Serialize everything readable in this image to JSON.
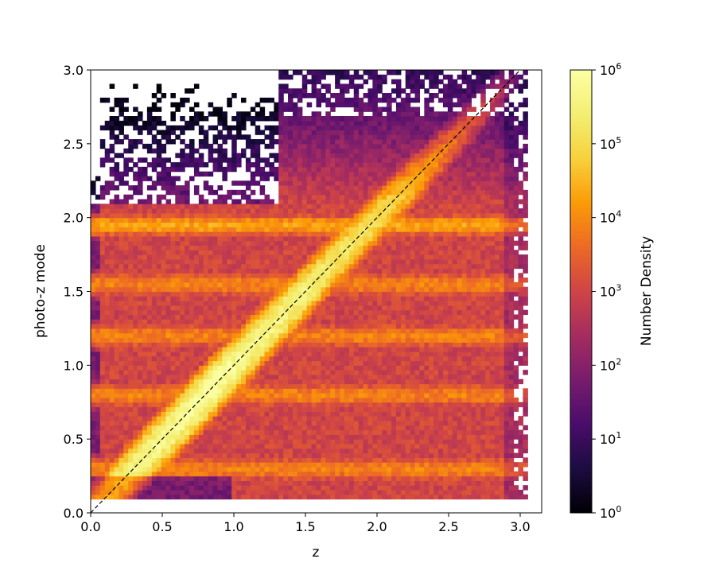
{
  "chart_data": {
    "type": "heatmap",
    "title": "",
    "xlabel": "z",
    "ylabel": "photo-z mode",
    "xlim": [
      0.0,
      3.15
    ],
    "ylim": [
      0.0,
      3.0
    ],
    "x_ticks": [
      "0.0",
      "0.5",
      "1.0",
      "1.5",
      "2.0",
      "2.5",
      "3.0"
    ],
    "y_ticks": [
      "0.0",
      "0.5",
      "1.0",
      "1.5",
      "2.0",
      "2.5",
      "3.0"
    ],
    "colorscale": "inferno",
    "log_scale": true,
    "colorbar": {
      "label": "Number Density",
      "range": [
        1,
        1000000
      ],
      "ticks": [
        {
          "base": "10",
          "exp": "0"
        },
        {
          "base": "10",
          "exp": "1"
        },
        {
          "base": "10",
          "exp": "2"
        },
        {
          "base": "10",
          "exp": "3"
        },
        {
          "base": "10",
          "exp": "4"
        },
        {
          "base": "10",
          "exp": "5"
        },
        {
          "base": "10",
          "exp": "6"
        }
      ]
    },
    "reference_line": {
      "style": "dashed",
      "color": "#000000",
      "from": [
        0,
        0
      ],
      "to": [
        3.0,
        3.0
      ]
    },
    "data_extent": {
      "x": [
        0.0,
        3.05
      ],
      "y": [
        0.1,
        3.0
      ]
    },
    "features": {
      "diagonal_peak_log_density": 6.0,
      "horizontal_band_y": 1.95,
      "horizontal_band_log_density": 4.3,
      "secondary_bands_y": [
        1.55,
        1.2,
        0.8,
        0.3
      ],
      "background_log_density": 3.0,
      "sparse_region_y_above": 2.1,
      "sparse_region_x_below": 1.3
    }
  }
}
